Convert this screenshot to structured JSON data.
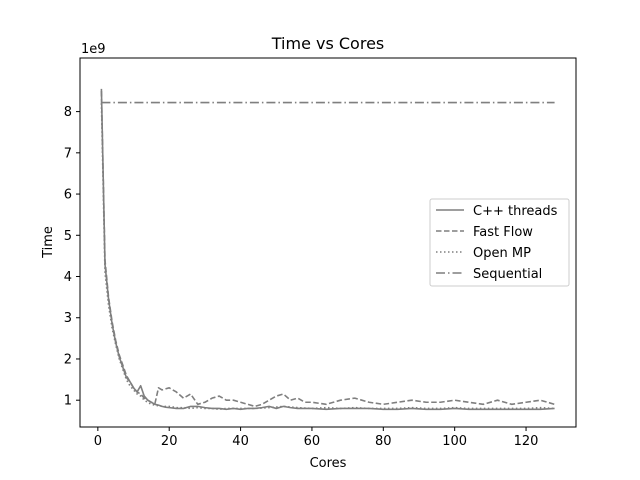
{
  "chart_data": {
    "type": "line",
    "title": "Time vs Cores",
    "xlabel": "Cores",
    "ylabel": "Time",
    "y_exponent_label": "1e9",
    "xlim": [
      -5,
      134
    ],
    "ylim": [
      0.35,
      9.3
    ],
    "xticks": [
      0,
      20,
      40,
      60,
      80,
      100,
      120
    ],
    "xtick_labels": [
      "0",
      "20",
      "40",
      "60",
      "80",
      "100",
      "120"
    ],
    "yticks": [
      1,
      2,
      3,
      4,
      5,
      6,
      7,
      8
    ],
    "ytick_labels": [
      "1",
      "2",
      "3",
      "4",
      "5",
      "6",
      "7",
      "8"
    ],
    "grid": false,
    "legend_position": "center-right",
    "color": "#7f7f7f",
    "series": [
      {
        "name": "C++ threads",
        "style": "solid",
        "x": [
          1,
          2,
          3,
          4,
          5,
          6,
          7,
          8,
          9,
          10,
          11,
          12,
          13,
          14,
          15,
          16,
          17,
          18,
          19,
          20,
          22,
          24,
          26,
          28,
          30,
          32,
          34,
          36,
          38,
          40,
          42,
          44,
          46,
          48,
          50,
          52,
          54,
          56,
          58,
          60,
          64,
          68,
          72,
          76,
          80,
          84,
          88,
          92,
          96,
          100,
          104,
          108,
          112,
          116,
          120,
          124,
          128
        ],
        "y": [
          8.55,
          4.3,
          3.45,
          2.85,
          2.4,
          2.05,
          1.8,
          1.55,
          1.45,
          1.3,
          1.2,
          1.35,
          1.1,
          1.0,
          0.95,
          0.9,
          0.88,
          0.85,
          0.83,
          0.82,
          0.8,
          0.8,
          0.85,
          0.85,
          0.82,
          0.8,
          0.8,
          0.78,
          0.8,
          0.78,
          0.8,
          0.8,
          0.82,
          0.85,
          0.8,
          0.85,
          0.82,
          0.8,
          0.8,
          0.8,
          0.78,
          0.8,
          0.8,
          0.8,
          0.78,
          0.78,
          0.8,
          0.78,
          0.78,
          0.8,
          0.78,
          0.78,
          0.78,
          0.78,
          0.78,
          0.78,
          0.8
        ]
      },
      {
        "name": "Fast Flow",
        "style": "dashed",
        "x": [
          1,
          2,
          3,
          4,
          5,
          6,
          7,
          8,
          9,
          10,
          11,
          12,
          13,
          14,
          15,
          16,
          17,
          18,
          20,
          22,
          24,
          26,
          28,
          30,
          32,
          34,
          36,
          38,
          40,
          42,
          44,
          46,
          48,
          50,
          52,
          54,
          56,
          58,
          60,
          64,
          68,
          72,
          76,
          80,
          84,
          88,
          92,
          96,
          100,
          104,
          108,
          112,
          116,
          120,
          124,
          128
        ],
        "y": [
          8.5,
          4.4,
          3.5,
          2.9,
          2.45,
          2.1,
          1.85,
          1.6,
          1.45,
          1.3,
          1.2,
          1.15,
          1.05,
          1.0,
          0.95,
          0.92,
          1.3,
          1.25,
          1.3,
          1.2,
          1.05,
          1.15,
          0.9,
          0.95,
          1.05,
          1.1,
          1.0,
          1.0,
          0.95,
          0.9,
          0.85,
          0.9,
          1.0,
          1.1,
          1.15,
          1.0,
          1.05,
          0.95,
          0.95,
          0.9,
          1.0,
          1.05,
          0.95,
          0.9,
          0.95,
          1.0,
          0.95,
          0.95,
          1.0,
          0.95,
          0.9,
          1.0,
          0.9,
          0.95,
          1.0,
          0.9
        ]
      },
      {
        "name": "Open MP",
        "style": "dotted",
        "x": [
          1,
          2,
          3,
          4,
          5,
          6,
          7,
          8,
          9,
          10,
          11,
          12,
          13,
          14,
          15,
          16,
          18,
          20,
          22,
          24,
          26,
          28,
          30,
          32,
          34,
          36,
          38,
          40,
          44,
          48,
          52,
          56,
          60,
          64,
          68,
          72,
          76,
          80,
          84,
          88,
          92,
          96,
          100,
          104,
          108,
          112,
          116,
          120,
          124,
          128
        ],
        "y": [
          8.2,
          4.1,
          3.3,
          2.75,
          2.35,
          2.0,
          1.75,
          1.5,
          1.35,
          1.25,
          1.15,
          1.1,
          1.0,
          0.95,
          0.9,
          0.88,
          0.85,
          0.85,
          0.82,
          0.82,
          0.8,
          0.82,
          0.8,
          0.8,
          0.78,
          0.8,
          0.8,
          0.8,
          0.8,
          0.82,
          0.85,
          0.82,
          0.8,
          0.82,
          0.8,
          0.82,
          0.8,
          0.8,
          0.8,
          0.82,
          0.8,
          0.8,
          0.82,
          0.8,
          0.8,
          0.8,
          0.8,
          0.8,
          0.82,
          0.8
        ]
      },
      {
        "name": "Sequential",
        "style": "dashdot",
        "x": [
          1,
          128
        ],
        "y": [
          8.22,
          8.22
        ]
      }
    ]
  }
}
